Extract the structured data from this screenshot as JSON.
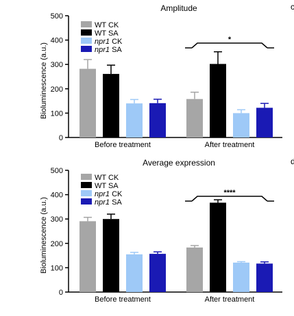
{
  "chart_data": [
    {
      "type": "bar",
      "title": "Amplitude",
      "ylabel": "Bioluminescence (a.u.)",
      "xlabel": "",
      "ylim": [
        0,
        500
      ],
      "yticks": [
        0,
        100,
        200,
        300,
        400,
        500
      ],
      "categories": [
        "Before treatment",
        "After treatment"
      ],
      "series": [
        {
          "name": "WT CK",
          "color": "#a6a6a6",
          "values": [
            282,
            158
          ],
          "errors": [
            38,
            28
          ]
        },
        {
          "name": "WT SA",
          "color": "#000000",
          "values": [
            261,
            302
          ],
          "errors": [
            36,
            50
          ]
        },
        {
          "name": "npr1 CK",
          "color": "#9ec9f7",
          "values": [
            140,
            100
          ],
          "errors": [
            16,
            14
          ]
        },
        {
          "name": "npr1 SA",
          "color": "#1a1ab4",
          "values": [
            141,
            122
          ],
          "errors": [
            16,
            18
          ]
        }
      ],
      "significance": [
        {
          "category": "After treatment",
          "label": "*"
        }
      ],
      "legend_position": "top-left",
      "corner_mark": "c"
    },
    {
      "type": "bar",
      "title": "Average expression",
      "ylabel": "Bioluminescence (a.u.)",
      "xlabel": "",
      "ylim": [
        0,
        500
      ],
      "yticks": [
        0,
        100,
        200,
        300,
        400,
        500
      ],
      "categories": [
        "Before treatment",
        "After treatment"
      ],
      "series": [
        {
          "name": "WT CK",
          "color": "#a6a6a6",
          "values": [
            291,
            183
          ],
          "errors": [
            16,
            8
          ]
        },
        {
          "name": "WT SA",
          "color": "#000000",
          "values": [
            300,
            367
          ],
          "errors": [
            20,
            12
          ]
        },
        {
          "name": "npr1 CK",
          "color": "#9ec9f7",
          "values": [
            155,
            121
          ],
          "errors": [
            8,
            4
          ]
        },
        {
          "name": "npr1 SA",
          "color": "#1a1ab4",
          "values": [
            157,
            117
          ],
          "errors": [
            8,
            7
          ]
        }
      ],
      "significance": [
        {
          "category": "After treatment",
          "label": "****"
        }
      ],
      "legend_position": "top-left",
      "corner_mark": "d"
    }
  ]
}
